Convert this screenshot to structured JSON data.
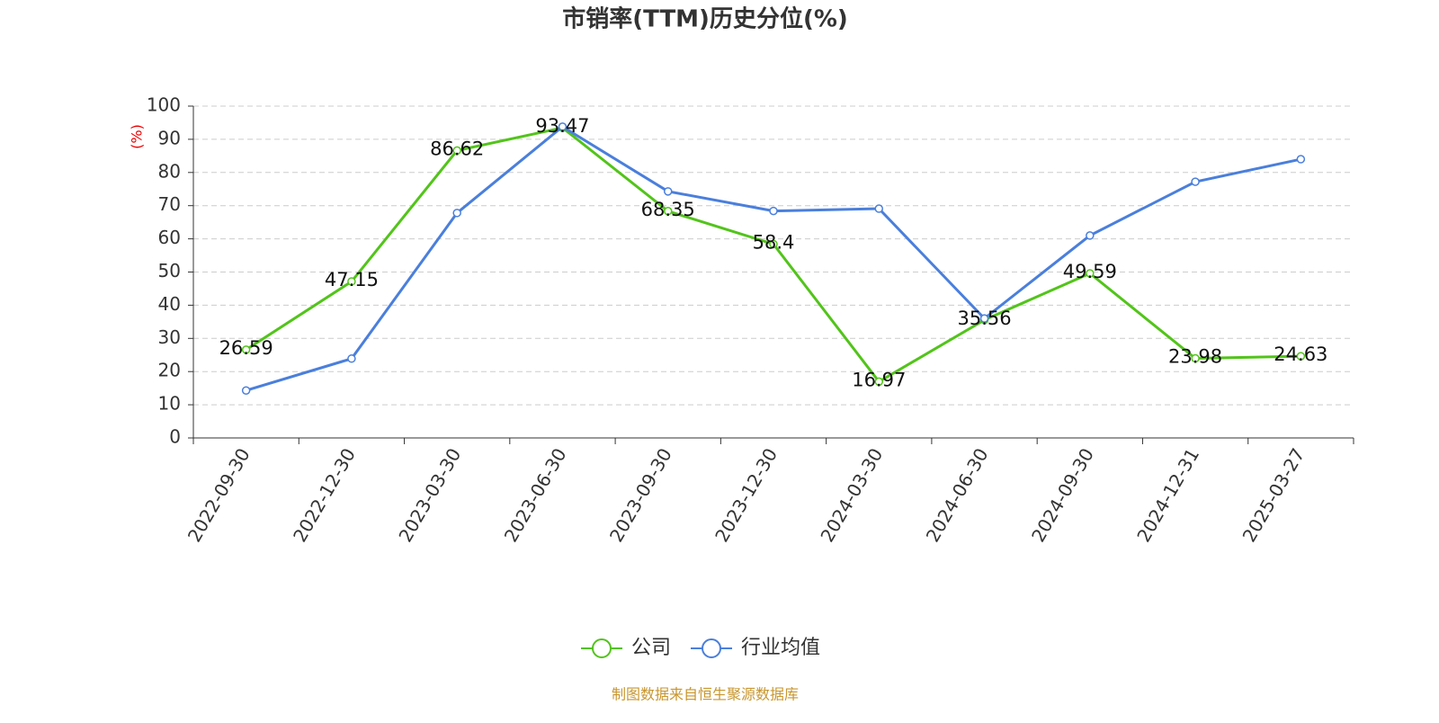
{
  "chart_data": {
    "type": "line",
    "title": "市销率(TTM)历史分位(%)",
    "y_label": "(%)",
    "categories": [
      "2022-09-30",
      "2022-12-30",
      "2023-03-30",
      "2023-06-30",
      "2023-09-30",
      "2023-12-30",
      "2024-03-30",
      "2024-06-30",
      "2024-09-30",
      "2024-12-31",
      "2025-03-27"
    ],
    "series": [
      {
        "name": "公司",
        "color": "#52c41a",
        "show_labels": true,
        "values": [
          26.59,
          47.15,
          86.62,
          93.47,
          68.35,
          58.4,
          16.97,
          35.56,
          49.59,
          23.98,
          24.63
        ]
      },
      {
        "name": "行业均值",
        "color": "#4a7fdc",
        "show_labels": false,
        "values": [
          14.3,
          23.9,
          67.8,
          93.8,
          74.3,
          68.4,
          69.1,
          36.0,
          61.0,
          77.2,
          84.0
        ]
      }
    ],
    "ylim": [
      0,
      100
    ],
    "yticks": [
      0,
      10,
      20,
      30,
      40,
      50,
      60,
      70,
      80,
      90,
      100
    ],
    "grid": true,
    "source": "制图数据来自恒生聚源数据库"
  }
}
